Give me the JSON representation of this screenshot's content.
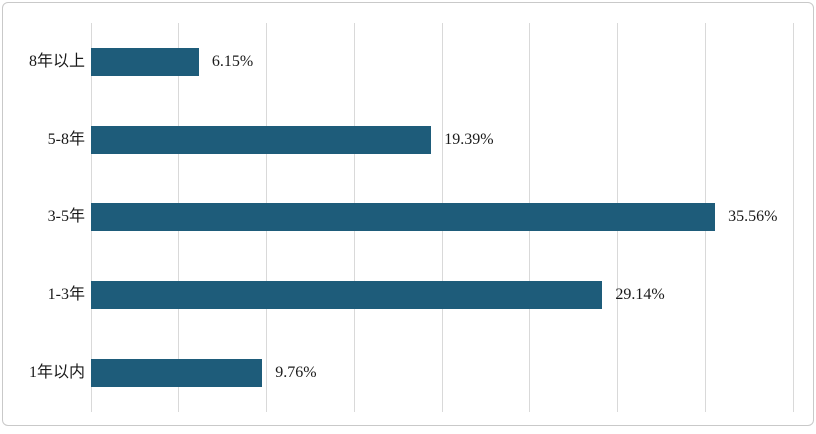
{
  "chart_data": {
    "type": "bar",
    "orientation": "horizontal",
    "title": "",
    "xlabel": "",
    "ylabel": "",
    "categories": [
      "8年以上",
      "5-8年",
      "3-5年",
      "1-3年",
      "1年以内"
    ],
    "values": [
      6.15,
      19.39,
      35.56,
      29.14,
      9.76
    ],
    "data_labels": [
      "6.15%",
      "19.39%",
      "35.56%",
      "29.14%",
      "9.76%"
    ],
    "xlim": [
      0,
      40
    ],
    "grid_step": 5,
    "grid": true,
    "legend": false,
    "axis_tick_labels_visible": false,
    "colors": {
      "bar_fill": "#1e5c7a",
      "gridline": "#d9d9d9",
      "chart_border": "#c9c9c9",
      "text": "#1a1a1a",
      "background": "#ffffff"
    }
  }
}
